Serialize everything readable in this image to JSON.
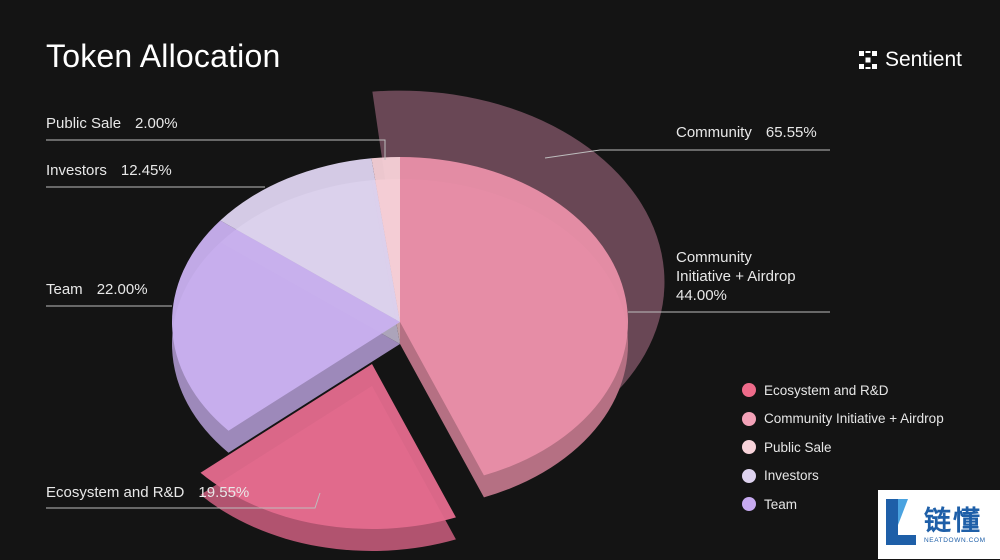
{
  "page": {
    "title": "Token Allocation",
    "brand": "Sentient"
  },
  "chart_data": {
    "type": "pie",
    "title": "Token Allocation",
    "slices": [
      {
        "name": "Community Initiative + Airdrop",
        "label": "Community\nInitiative + Airdrop",
        "value": 44.0,
        "value_text": "44.00%",
        "color": "#e88fa8"
      },
      {
        "name": "Ecosystem and R&D",
        "label": "Ecosystem and R&D",
        "value": 19.55,
        "value_text": "19.55%",
        "color": "#e36b8e"
      },
      {
        "name": "Team",
        "label": "Team",
        "value": 22.0,
        "value_text": "22.00%",
        "color": "#c9b0ef"
      },
      {
        "name": "Investors",
        "label": "Investors",
        "value": 12.45,
        "value_text": "12.45%",
        "color": "#ddd2ee"
      },
      {
        "name": "Public Sale",
        "label": "Public Sale",
        "value": 2.0,
        "value_text": "2.00%",
        "color": "#f6cfd6"
      }
    ],
    "group": {
      "name": "Community",
      "value": 65.55,
      "value_text": "65.55%",
      "color": "#6e4a58"
    },
    "legend": [
      {
        "name": "Ecosystem and R&D",
        "color": "#ee6b8a"
      },
      {
        "name": "Community Initiative + Airdrop",
        "color": "#f3a2b8"
      },
      {
        "name": "Public Sale",
        "color": "#f8d3da"
      },
      {
        "name": "Investors",
        "color": "#ddd2ee"
      },
      {
        "name": "Team",
        "color": "#c7aaf0"
      }
    ],
    "legend_position": "bottom-right"
  },
  "watermark": {
    "cn": "链懂",
    "en": "NEATDOWN.COM"
  }
}
